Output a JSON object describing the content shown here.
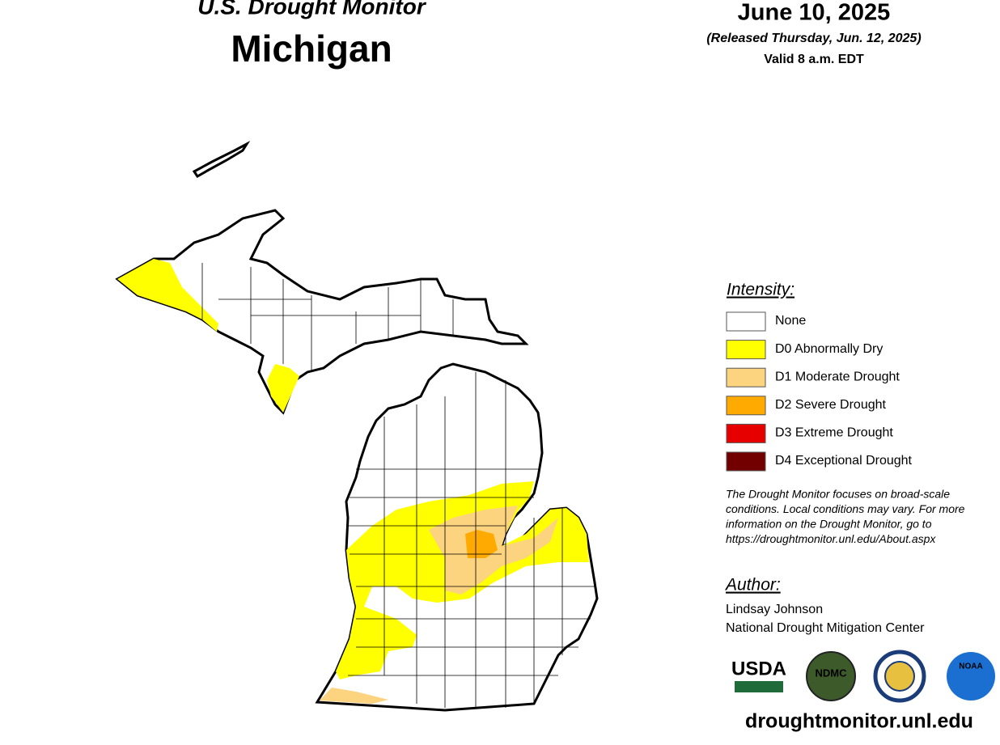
{
  "header": {
    "subtitle": "U.S. Drought Monitor",
    "title": "Michigan",
    "date": "June 10, 2025",
    "released": "(Released Thursday, Jun. 12, 2025)",
    "valid": "Valid 8 a.m. EDT"
  },
  "legend": {
    "title": "Intensity:",
    "items": [
      {
        "label": "None",
        "color": "#ffffff"
      },
      {
        "label": "D0 Abnormally Dry",
        "color": "#ffff00"
      },
      {
        "label": "D1 Moderate Drought",
        "color": "#fcd37f"
      },
      {
        "label": "D2 Severe Drought",
        "color": "#ffaa00"
      },
      {
        "label": "D3 Extreme Drought",
        "color": "#e60000"
      },
      {
        "label": "D4 Exceptional Drought",
        "color": "#730000"
      }
    ]
  },
  "note": [
    "The Drought Monitor focuses on broad-scale",
    "conditions. Local conditions may vary. For more",
    "information on the Drought Monitor, go to",
    "https://droughtmonitor.unl.edu/About.aspx"
  ],
  "author": {
    "title": "Author:",
    "name": "Lindsay Johnson",
    "org": "National Drought Mitigation Center"
  },
  "logos": [
    "USDA",
    "NDMC",
    "NOAA"
  ],
  "url": "droughtmonitor.unl.edu"
}
